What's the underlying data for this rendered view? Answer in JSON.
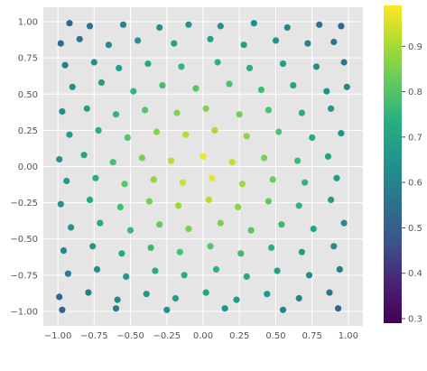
{
  "chart_data": {
    "type": "scatter",
    "title": "",
    "xlabel": "",
    "ylabel": "",
    "xlim": [
      -1.1,
      1.1
    ],
    "ylim": [
      -1.1,
      1.1
    ],
    "xticks": [
      -1.0,
      -0.75,
      -0.5,
      -0.25,
      0.0,
      0.25,
      0.5,
      0.75,
      1.0
    ],
    "xtick_labels": [
      "−1.00",
      "−0.75",
      "−0.50",
      "−0.25",
      "0.00",
      "0.25",
      "0.50",
      "0.75",
      "1.00"
    ],
    "yticks": [
      -1.0,
      -0.75,
      -0.5,
      -0.25,
      0.0,
      0.25,
      0.5,
      0.75,
      1.0
    ],
    "ytick_labels": [
      "−1.00",
      "−0.75",
      "−0.50",
      "−0.25",
      "0.00",
      "0.25",
      "0.50",
      "0.75",
      "1.00"
    ],
    "grid": true,
    "style": "ggplot",
    "colormap": "viridis",
    "color_value_formula": "1 - 0.5 * sqrt((x^2 + y^2) / 2)",
    "colorbar": {
      "range": [
        0.29,
        0.99
      ],
      "ticks": [
        0.3,
        0.4,
        0.5,
        0.6,
        0.7,
        0.8,
        0.9
      ],
      "tick_labels": [
        "0.3",
        "0.4",
        "0.5",
        "0.6",
        "0.7",
        "0.8",
        "0.9"
      ],
      "placement": "right"
    },
    "colors": {
      "plot_background": "#e5e5e5",
      "grid": "#ffffff"
    },
    "approx_point_count": 1000,
    "points": [
      [
        -0.92,
        0.99
      ],
      [
        -0.78,
        0.97
      ],
      [
        -0.55,
        0.98
      ],
      [
        -0.3,
        0.96
      ],
      [
        -0.1,
        0.98
      ],
      [
        0.12,
        0.97
      ],
      [
        0.35,
        0.99
      ],
      [
        0.58,
        0.96
      ],
      [
        0.8,
        0.98
      ],
      [
        0.95,
        0.97
      ],
      [
        -0.98,
        0.85
      ],
      [
        -0.85,
        0.88
      ],
      [
        -0.65,
        0.84
      ],
      [
        -0.45,
        0.87
      ],
      [
        -0.2,
        0.85
      ],
      [
        0.05,
        0.88
      ],
      [
        0.28,
        0.84
      ],
      [
        0.5,
        0.87
      ],
      [
        0.72,
        0.85
      ],
      [
        0.9,
        0.86
      ],
      [
        -0.95,
        0.7
      ],
      [
        -0.75,
        0.72
      ],
      [
        -0.58,
        0.68
      ],
      [
        -0.38,
        0.71
      ],
      [
        -0.15,
        0.69
      ],
      [
        0.1,
        0.72
      ],
      [
        0.32,
        0.68
      ],
      [
        0.55,
        0.71
      ],
      [
        0.78,
        0.69
      ],
      [
        0.97,
        0.72
      ],
      [
        -0.9,
        0.55
      ],
      [
        -0.7,
        0.58
      ],
      [
        -0.48,
        0.52
      ],
      [
        -0.28,
        0.56
      ],
      [
        -0.05,
        0.54
      ],
      [
        0.18,
        0.57
      ],
      [
        0.4,
        0.53
      ],
      [
        0.62,
        0.56
      ],
      [
        0.85,
        0.52
      ],
      [
        0.99,
        0.55
      ],
      [
        -0.97,
        0.38
      ],
      [
        -0.8,
        0.4
      ],
      [
        -0.6,
        0.36
      ],
      [
        -0.4,
        0.39
      ],
      [
        -0.18,
        0.37
      ],
      [
        0.02,
        0.4
      ],
      [
        0.25,
        0.36
      ],
      [
        0.45,
        0.39
      ],
      [
        0.68,
        0.37
      ],
      [
        0.88,
        0.4
      ],
      [
        -0.92,
        0.22
      ],
      [
        -0.72,
        0.25
      ],
      [
        -0.52,
        0.2
      ],
      [
        -0.32,
        0.24
      ],
      [
        -0.12,
        0.22
      ],
      [
        0.08,
        0.25
      ],
      [
        0.3,
        0.21
      ],
      [
        0.52,
        0.24
      ],
      [
        0.75,
        0.2
      ],
      [
        0.95,
        0.23
      ],
      [
        -0.99,
        0.05
      ],
      [
        -0.82,
        0.08
      ],
      [
        -0.62,
        0.03
      ],
      [
        -0.42,
        0.06
      ],
      [
        -0.22,
        0.04
      ],
      [
        0.0,
        0.07
      ],
      [
        0.2,
        0.03
      ],
      [
        0.42,
        0.06
      ],
      [
        0.65,
        0.04
      ],
      [
        0.86,
        0.07
      ],
      [
        -0.94,
        -0.1
      ],
      [
        -0.74,
        -0.08
      ],
      [
        -0.54,
        -0.12
      ],
      [
        -0.34,
        -0.09
      ],
      [
        -0.14,
        -0.11
      ],
      [
        0.06,
        -0.08
      ],
      [
        0.27,
        -0.12
      ],
      [
        0.48,
        -0.09
      ],
      [
        0.7,
        -0.11
      ],
      [
        0.92,
        -0.08
      ],
      [
        -0.98,
        -0.26
      ],
      [
        -0.78,
        -0.23
      ],
      [
        -0.57,
        -0.28
      ],
      [
        -0.37,
        -0.24
      ],
      [
        -0.17,
        -0.27
      ],
      [
        0.04,
        -0.23
      ],
      [
        0.24,
        -0.28
      ],
      [
        0.45,
        -0.24
      ],
      [
        0.66,
        -0.27
      ],
      [
        0.88,
        -0.23
      ],
      [
        -0.91,
        -0.42
      ],
      [
        -0.71,
        -0.39
      ],
      [
        -0.5,
        -0.44
      ],
      [
        -0.3,
        -0.4
      ],
      [
        -0.1,
        -0.43
      ],
      [
        0.12,
        -0.39
      ],
      [
        0.33,
        -0.44
      ],
      [
        0.54,
        -0.4
      ],
      [
        0.76,
        -0.43
      ],
      [
        0.97,
        -0.39
      ],
      [
        -0.96,
        -0.58
      ],
      [
        -0.76,
        -0.55
      ],
      [
        -0.56,
        -0.6
      ],
      [
        -0.36,
        -0.56
      ],
      [
        -0.16,
        -0.59
      ],
      [
        0.05,
        -0.55
      ],
      [
        0.26,
        -0.6
      ],
      [
        0.47,
        -0.56
      ],
      [
        0.68,
        -0.59
      ],
      [
        0.9,
        -0.55
      ],
      [
        -0.93,
        -0.74
      ],
      [
        -0.73,
        -0.71
      ],
      [
        -0.53,
        -0.76
      ],
      [
        -0.33,
        -0.72
      ],
      [
        -0.13,
        -0.75
      ],
      [
        0.09,
        -0.71
      ],
      [
        0.3,
        -0.76
      ],
      [
        0.51,
        -0.72
      ],
      [
        0.73,
        -0.75
      ],
      [
        0.94,
        -0.71
      ],
      [
        -0.99,
        -0.9
      ],
      [
        -0.79,
        -0.87
      ],
      [
        -0.59,
        -0.92
      ],
      [
        -0.39,
        -0.88
      ],
      [
        -0.19,
        -0.91
      ],
      [
        0.02,
        -0.87
      ],
      [
        0.23,
        -0.92
      ],
      [
        0.44,
        -0.88
      ],
      [
        0.66,
        -0.91
      ],
      [
        0.87,
        -0.87
      ],
      [
        -0.97,
        -0.99
      ],
      [
        -0.6,
        -0.98
      ],
      [
        -0.25,
        -0.99
      ],
      [
        0.15,
        -0.98
      ],
      [
        0.55,
        -0.99
      ],
      [
        0.93,
        -0.98
      ]
    ]
  }
}
